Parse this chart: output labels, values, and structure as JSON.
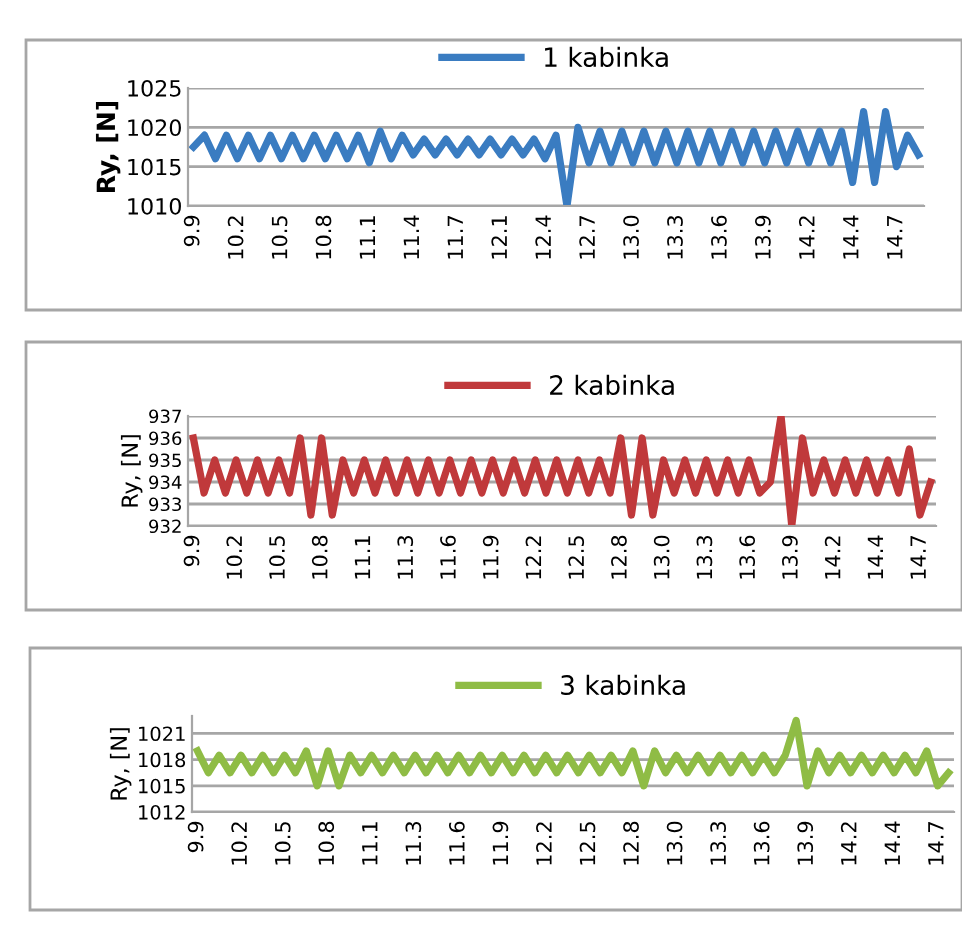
{
  "chart_data": [
    {
      "type": "line",
      "ylabel": "Ry, [N]",
      "ylim": [
        1010,
        1025
      ],
      "yticks": [
        1010,
        1015,
        1020,
        1025
      ],
      "grid": "y",
      "legend": "top",
      "marker": "none",
      "line_style": "solid",
      "categories": [
        "9.9",
        null,
        null,
        null,
        "10.2",
        null,
        null,
        null,
        "10.5",
        null,
        null,
        null,
        "10.8",
        null,
        null,
        null,
        "11.1",
        null,
        null,
        null,
        "11.4",
        null,
        null,
        null,
        "11.7",
        null,
        null,
        null,
        "12.1",
        null,
        null,
        null,
        "12.4",
        null,
        null,
        null,
        "12.7",
        null,
        null,
        null,
        "13.0",
        null,
        null,
        null,
        "13.3",
        null,
        null,
        null,
        "13.6",
        null,
        null,
        null,
        "13.9",
        null,
        null,
        null,
        "14.2",
        null,
        null,
        null,
        "14.4",
        null,
        null,
        null,
        "14.7",
        null,
        null
      ],
      "series": [
        {
          "name": "1 kabinka",
          "color": "#3a7cc1",
          "values": [
            1017.5,
            1019,
            1016,
            1019,
            1016,
            1019,
            1016,
            1019,
            1016,
            1019,
            1016,
            1019,
            1016,
            1019,
            1016,
            1019,
            1015.5,
            1019.5,
            1016,
            1019,
            1016.5,
            1018.5,
            1016.5,
            1018.5,
            1016.5,
            1018.5,
            1016.5,
            1018.5,
            1016.5,
            1018.5,
            1016.5,
            1018.5,
            1016,
            1019,
            1010,
            1020,
            1015.5,
            1019.5,
            1015.5,
            1019.5,
            1015.5,
            1019.5,
            1015.5,
            1019.5,
            1015.5,
            1019.5,
            1015.5,
            1019.5,
            1015.5,
            1019.5,
            1015.5,
            1019.5,
            1015.5,
            1019.5,
            1015.5,
            1019.5,
            1015.5,
            1019.5,
            1015.5,
            1019.5,
            1013,
            1022,
            1013,
            1022,
            1015,
            1019,
            1016.5
          ]
        }
      ]
    },
    {
      "type": "line",
      "ylabel": "Ry, [N]",
      "ylim": [
        932,
        937
      ],
      "yticks": [
        932,
        933,
        934,
        935,
        936,
        937
      ],
      "grid": "y",
      "legend": "top",
      "marker": "none",
      "line_style": "solid",
      "categories": [
        "9.9",
        null,
        null,
        null,
        "10.2",
        null,
        null,
        null,
        "10.5",
        null,
        null,
        null,
        "10.8",
        null,
        null,
        null,
        "11.1",
        null,
        null,
        null,
        "11.3",
        null,
        null,
        null,
        "11.6",
        null,
        null,
        null,
        "11.9",
        null,
        null,
        null,
        "12.2",
        null,
        null,
        null,
        "12.5",
        null,
        null,
        null,
        "12.8",
        null,
        null,
        null,
        "13.0",
        null,
        null,
        null,
        "13.3",
        null,
        null,
        null,
        "13.6",
        null,
        null,
        null,
        "13.9",
        null,
        null,
        null,
        "14.2",
        null,
        null,
        null,
        "14.4",
        null,
        null,
        null,
        "14.7",
        null
      ],
      "series": [
        {
          "name": "2 kabinka",
          "color": "#c0393b",
          "values": [
            936,
            933.5,
            935,
            933.5,
            935,
            933.5,
            935,
            933.5,
            935,
            933.5,
            936,
            932.5,
            936,
            932.5,
            935,
            933.5,
            935,
            933.5,
            935,
            933.5,
            935,
            933.5,
            935,
            933.5,
            935,
            933.5,
            935,
            933.5,
            935,
            933.5,
            935,
            933.5,
            935,
            933.5,
            935,
            933.5,
            935,
            933.5,
            935,
            933.5,
            936,
            932.5,
            936,
            932.5,
            935,
            933.5,
            935,
            933.5,
            935,
            933.5,
            935,
            933.5,
            935,
            933.5,
            934,
            937,
            932,
            936,
            933.5,
            935,
            933.5,
            935,
            933.5,
            935,
            933.5,
            935,
            933.5,
            935.5,
            932.5,
            934
          ]
        }
      ]
    },
    {
      "type": "line",
      "ylabel": "Ry, [N]",
      "ylim": [
        1012,
        1023
      ],
      "yticks": [
        1012,
        1015,
        1018,
        1021
      ],
      "grid": "y",
      "legend": "top",
      "marker": "none",
      "line_style": "solid",
      "categories": [
        "9.9",
        null,
        null,
        null,
        "10.2",
        null,
        null,
        null,
        "10.5",
        null,
        null,
        null,
        "10.8",
        null,
        null,
        null,
        "11.1",
        null,
        null,
        null,
        "11.3",
        null,
        null,
        null,
        "11.6",
        null,
        null,
        null,
        "11.9",
        null,
        null,
        null,
        "12.2",
        null,
        null,
        null,
        "12.5",
        null,
        null,
        null,
        "12.8",
        null,
        null,
        null,
        "13.0",
        null,
        null,
        null,
        "13.3",
        null,
        null,
        null,
        "13.6",
        null,
        null,
        null,
        "13.9",
        null,
        null,
        null,
        "14.2",
        null,
        null,
        null,
        "14.4",
        null,
        null,
        null,
        "14.7",
        null
      ],
      "series": [
        {
          "name": "3 kabinka",
          "color": "#8fbc45",
          "values": [
            1019,
            1016.5,
            1018.5,
            1016.5,
            1018.5,
            1016.5,
            1018.5,
            1016.5,
            1018.5,
            1016.5,
            1019,
            1015,
            1019,
            1015,
            1018.5,
            1016.5,
            1018.5,
            1016.5,
            1018.5,
            1016.5,
            1018.5,
            1016.5,
            1018.5,
            1016.5,
            1018.5,
            1016.5,
            1018.5,
            1016.5,
            1018.5,
            1016.5,
            1018.5,
            1016.5,
            1018.5,
            1016.5,
            1018.5,
            1016.5,
            1018.5,
            1016.5,
            1018.5,
            1016.5,
            1019,
            1015,
            1019,
            1016.5,
            1018.5,
            1016.5,
            1018.5,
            1016.5,
            1018.5,
            1016.5,
            1018.5,
            1016.5,
            1018.5,
            1016.5,
            1018.5,
            1022.5,
            1015,
            1019,
            1016.5,
            1018.5,
            1016.5,
            1018.5,
            1016.5,
            1018.5,
            1016.5,
            1018.5,
            1016.5,
            1019,
            1015,
            1016.5
          ]
        }
      ]
    }
  ]
}
